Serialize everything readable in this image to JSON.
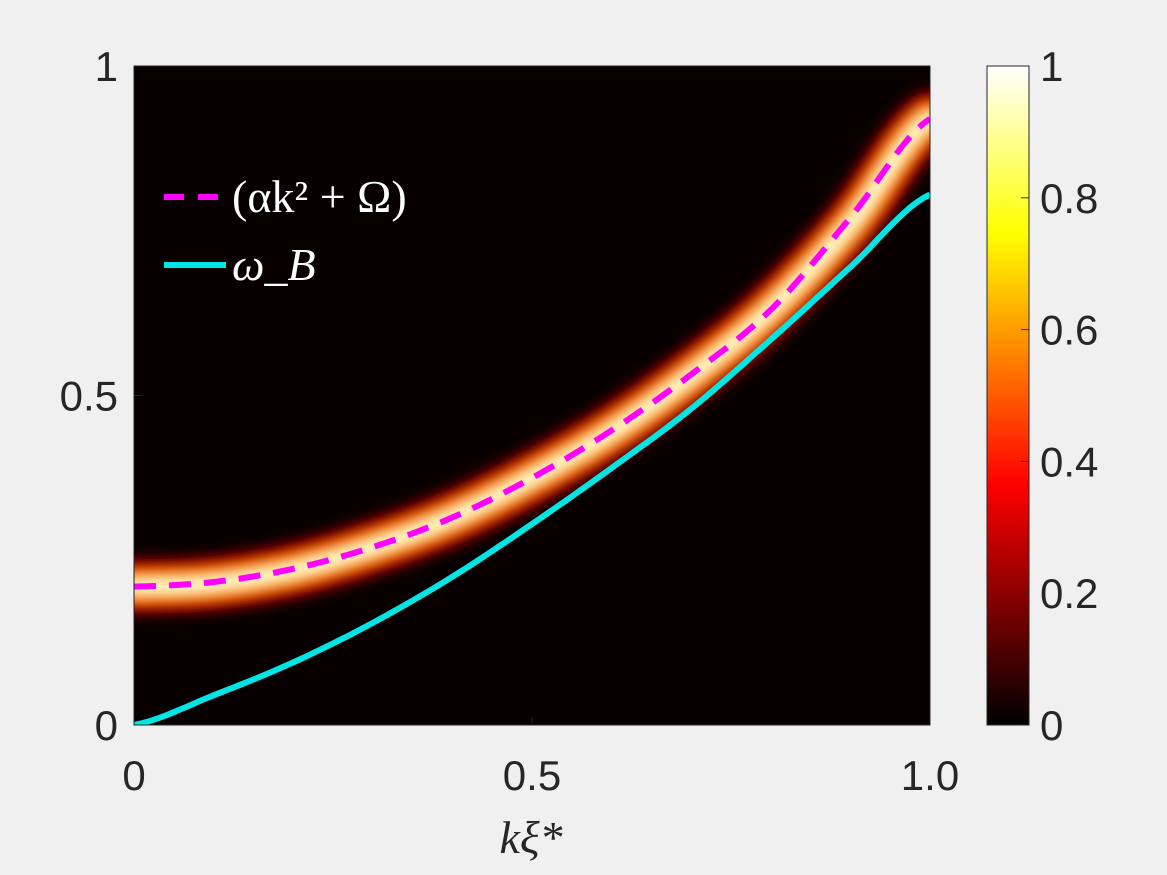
{
  "chart_data": {
    "type": "heatmap",
    "xlabel": "kξ*",
    "ylabel": "",
    "title": "",
    "xlim": [
      0,
      1.0
    ],
    "ylim": [
      0,
      1
    ],
    "xticks": [
      0,
      0.5,
      1.0
    ],
    "xtick_labels": [
      "0",
      "0.5",
      "1.0"
    ],
    "yticks": [
      0,
      0.5,
      1
    ],
    "ytick_labels": [
      "0",
      "0.5",
      "1"
    ],
    "grid": false,
    "legend_position": "top-left",
    "background_color": "#080000",
    "colormap": "hot",
    "colorbar": {
      "range": [
        0,
        1
      ],
      "ticks": [
        0,
        0.2,
        0.4,
        0.6,
        0.8,
        1
      ],
      "tick_labels": [
        "0",
        "0.2",
        "0.4",
        "0.6",
        "0.8",
        "1"
      ]
    },
    "heatmap_band": {
      "description_of_peak": "bright band centered on the dashed curve",
      "center_k": [
        0,
        0.1,
        0.2,
        0.3,
        0.4,
        0.5,
        0.6,
        0.7,
        0.8,
        0.9,
        1.0
      ],
      "center_omega": [
        0.21,
        0.215,
        0.235,
        0.27,
        0.315,
        0.375,
        0.445,
        0.53,
        0.63,
        0.76,
        0.92
      ],
      "width": 0.035
    },
    "series": [
      {
        "name": "(αk² + Ω)",
        "style": "dashed",
        "color": "#ff00ff",
        "x": [
          0,
          0.1,
          0.2,
          0.3,
          0.4,
          0.5,
          0.6,
          0.7,
          0.8,
          0.9,
          1.0
        ],
        "y": [
          0.21,
          0.217,
          0.237,
          0.27,
          0.315,
          0.375,
          0.447,
          0.532,
          0.63,
          0.77,
          0.92
        ]
      },
      {
        "name": "ω_B",
        "style": "solid",
        "color": "#00e6e6",
        "x": [
          0,
          0.1,
          0.2,
          0.3,
          0.4,
          0.5,
          0.6,
          0.7,
          0.8,
          0.9,
          1.0
        ],
        "y": [
          0,
          0.045,
          0.095,
          0.155,
          0.225,
          0.305,
          0.39,
          0.48,
          0.585,
          0.695,
          0.805
        ]
      }
    ],
    "legend": {
      "entry_1": "(αk² + Ω)",
      "entry_2": "ω_B"
    }
  }
}
